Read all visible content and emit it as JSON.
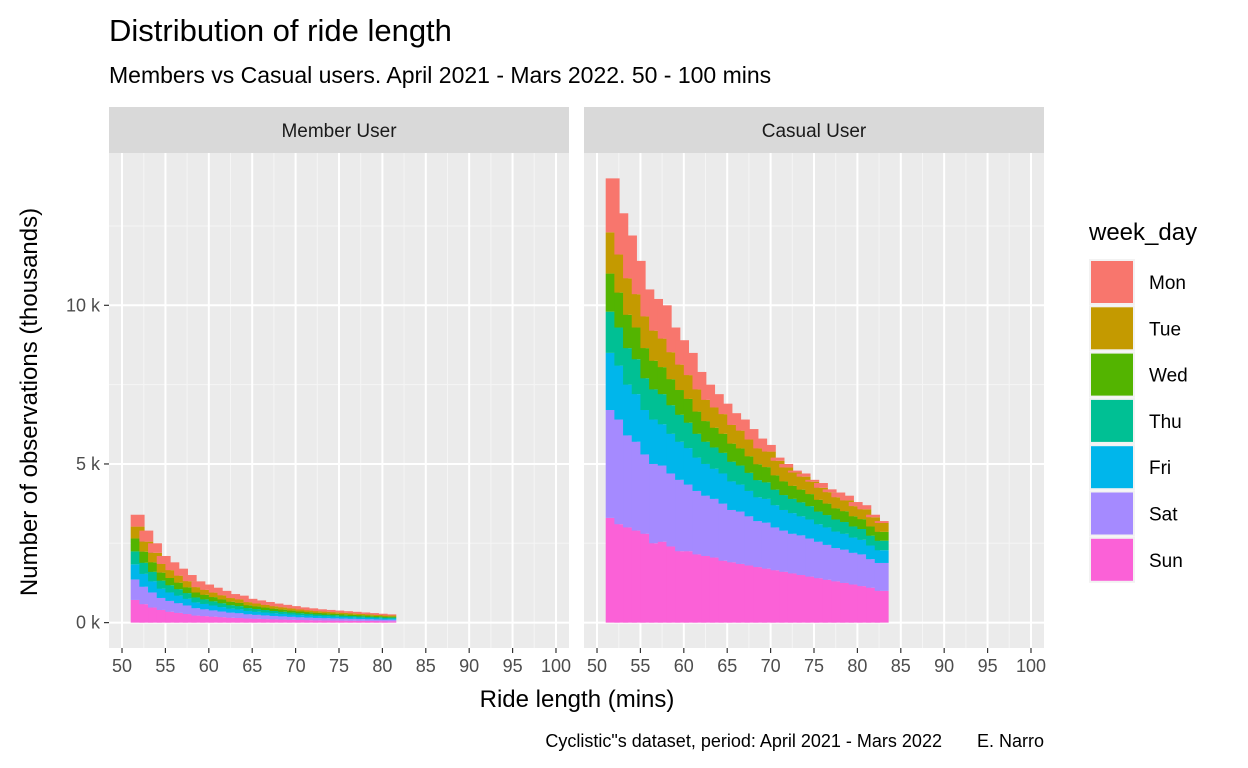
{
  "chart_data": {
    "type": "bar",
    "subtype": "stacked-histogram-facets",
    "title": "Distribution of ride length",
    "subtitle": "Members vs Casual users. April 2021 - Mars 2022. 50 - 100 mins",
    "caption": "Cyclistic\"s dataset, period: April 2021 - Mars 2022       E. Narro",
    "xlabel": "Ride length (mins)",
    "ylabel": "Number of observations (thousands)",
    "xlim": [
      48.5,
      101.5
    ],
    "ylim": [
      -800,
      14800
    ],
    "x_ticks": [
      50,
      55,
      60,
      65,
      70,
      75,
      80,
      85,
      90,
      95,
      100
    ],
    "y_ticks": [
      {
        "value": 0,
        "label": "0 k"
      },
      {
        "value": 5000,
        "label": "5 k"
      },
      {
        "value": 10000,
        "label": "10 k"
      }
    ],
    "grid": true,
    "legend": {
      "title": "week_day",
      "position": "right",
      "entries": [
        {
          "name": "Mon",
          "color": "#F8766D"
        },
        {
          "name": "Tue",
          "color": "#C49A00"
        },
        {
          "name": "Wed",
          "color": "#53B400"
        },
        {
          "name": "Thu",
          "color": "#00C094"
        },
        {
          "name": "Fri",
          "color": "#00B6EB"
        },
        {
          "name": "Sat",
          "color": "#A58AFF"
        },
        {
          "name": "Sun",
          "color": "#FB61D7"
        }
      ]
    },
    "bin_starts": [
      51,
      52,
      53,
      54,
      55,
      56,
      57,
      58,
      59,
      60,
      61,
      62,
      63,
      64,
      65,
      66,
      67,
      68,
      69,
      70,
      71,
      72,
      73,
      74,
      75,
      76,
      77,
      78,
      79,
      80,
      81,
      82,
      83,
      84,
      85,
      86,
      87,
      88,
      89,
      90,
      91,
      92,
      93,
      94,
      95,
      96,
      97,
      98
    ],
    "bin_width": 1.6,
    "stack_order": [
      "Sun",
      "Sat",
      "Fri",
      "Thu",
      "Wed",
      "Tue",
      "Mon"
    ],
    "facets": [
      {
        "label": "Member User",
        "totals": [
          3400,
          2900,
          2500,
          2100,
          1900,
          1700,
          1500,
          1300,
          1200,
          1100,
          1000,
          900,
          850,
          750,
          700,
          650,
          600,
          560,
          520,
          480,
          450,
          420,
          400,
          380,
          360,
          340,
          320,
          300,
          280,
          260
        ],
        "shares": {
          "Sun": [
            0.21,
            0.2,
            0.19,
            0.19,
            0.18,
            0.18,
            0.18,
            0.17,
            0.17,
            0.17,
            0.17,
            0.17,
            0.17,
            0.17,
            0.17,
            0.17,
            0.17,
            0.17,
            0.17,
            0.17,
            0.17,
            0.17,
            0.17,
            0.17,
            0.17,
            0.17,
            0.17,
            0.17,
            0.17,
            0.17
          ],
          "Sat": [
            0.19,
            0.19,
            0.19,
            0.18,
            0.18,
            0.18,
            0.18,
            0.18,
            0.18,
            0.18,
            0.18,
            0.18,
            0.18,
            0.18,
            0.18,
            0.18,
            0.18,
            0.18,
            0.18,
            0.18,
            0.18,
            0.18,
            0.18,
            0.18,
            0.18,
            0.18,
            0.18,
            0.18,
            0.18,
            0.18
          ],
          "Fri": [
            0.14,
            0.14,
            0.14,
            0.14,
            0.14,
            0.14,
            0.14,
            0.14,
            0.14,
            0.14,
            0.14,
            0.14,
            0.14,
            0.14,
            0.14,
            0.14,
            0.14,
            0.14,
            0.14,
            0.14,
            0.14,
            0.14,
            0.14,
            0.14,
            0.14,
            0.14,
            0.14,
            0.14,
            0.14,
            0.14
          ],
          "Thu": [
            0.12,
            0.12,
            0.12,
            0.12,
            0.12,
            0.12,
            0.12,
            0.12,
            0.12,
            0.12,
            0.12,
            0.12,
            0.12,
            0.12,
            0.12,
            0.12,
            0.12,
            0.12,
            0.12,
            0.12,
            0.12,
            0.12,
            0.12,
            0.12,
            0.12,
            0.12,
            0.12,
            0.12,
            0.12,
            0.12
          ],
          "Wed": [
            0.12,
            0.12,
            0.12,
            0.12,
            0.12,
            0.12,
            0.12,
            0.12,
            0.12,
            0.12,
            0.12,
            0.12,
            0.12,
            0.12,
            0.12,
            0.12,
            0.12,
            0.12,
            0.12,
            0.12,
            0.12,
            0.12,
            0.12,
            0.12,
            0.12,
            0.12,
            0.12,
            0.12,
            0.12,
            0.12
          ],
          "Tue": [
            0.11,
            0.11,
            0.12,
            0.13,
            0.13,
            0.13,
            0.13,
            0.13,
            0.13,
            0.13,
            0.13,
            0.13,
            0.13,
            0.13,
            0.13,
            0.13,
            0.13,
            0.13,
            0.13,
            0.13,
            0.13,
            0.13,
            0.13,
            0.13,
            0.13,
            0.13,
            0.13,
            0.13,
            0.13,
            0.13
          ],
          "Mon": [
            0.11,
            0.12,
            0.12,
            0.12,
            0.13,
            0.13,
            0.13,
            0.14,
            0.14,
            0.14,
            0.14,
            0.14,
            0.14,
            0.14,
            0.14,
            0.14,
            0.14,
            0.14,
            0.14,
            0.14,
            0.14,
            0.14,
            0.14,
            0.14,
            0.14,
            0.14,
            0.14,
            0.14,
            0.14,
            0.14
          ]
        }
      },
      {
        "label": "Casual User",
        "totals": [
          14000,
          12900,
          12200,
          11400,
          10500,
          10400,
          10000,
          9300,
          8900,
          8500,
          7900,
          7500,
          7100,
          6900,
          6600,
          6300,
          6100,
          5700,
          5600,
          5100,
          4900,
          4700,
          4600,
          4300,
          4200,
          4000,
          3900,
          3800,
          3600,
          3500,
          3200,
          3100
        ],
        "Sun": [
          3300,
          3100,
          3000,
          2900,
          2800,
          2500,
          2550,
          2400,
          2250,
          2250,
          2150,
          2100,
          2050,
          1950,
          1900,
          1850,
          1800,
          1750,
          1700,
          1650,
          1600,
          1550,
          1500,
          1450,
          1400,
          1350,
          1300,
          1250,
          1200,
          1150,
          1100,
          1000
        ],
        "Sat": [
          3400,
          3300,
          2900,
          2800,
          2500,
          2500,
          2400,
          2300,
          2250,
          2100,
          2000,
          1900,
          1850,
          1800,
          1650,
          1650,
          1550,
          1450,
          1450,
          1350,
          1300,
          1250,
          1250,
          1200,
          1150,
          1100,
          1050,
          1050,
          1000,
          1000,
          900,
          880
        ],
        "Fri": [
          1800,
          1700,
          1600,
          1500,
          1400,
          1400,
          1300,
          1250,
          1200,
          1150,
          1050,
          1000,
          950,
          950,
          900,
          850,
          800,
          750,
          750,
          700,
          650,
          650,
          600,
          600,
          550,
          550,
          520,
          500,
          480,
          460,
          430,
          400
        ],
        "Thu": [
          1300,
          1200,
          1150,
          1100,
          1000,
          950,
          950,
          900,
          850,
          800,
          750,
          700,
          670,
          650,
          620,
          600,
          570,
          540,
          520,
          490,
          470,
          450,
          440,
          420,
          400,
          390,
          380,
          370,
          350,
          340,
          310,
          300
        ],
        "Wed": [
          1200,
          1100,
          1050,
          1000,
          950,
          900,
          850,
          820,
          780,
          750,
          700,
          650,
          620,
          600,
          570,
          540,
          520,
          500,
          480,
          450,
          430,
          410,
          400,
          380,
          370,
          360,
          350,
          340,
          320,
          310,
          290,
          280
        ],
        "Tue": [
          1300,
          1200,
          1150,
          1050,
          1000,
          950,
          900,
          850,
          800,
          750,
          700,
          670,
          640,
          620,
          590,
          560,
          530,
          500,
          490,
          460,
          440,
          420,
          410,
          390,
          380,
          360,
          350,
          340,
          320,
          310,
          290,
          280
        ],
        "Mon": [
          1700,
          1300,
          1350,
          1050,
          850,
          1000,
          1050,
          780,
          770,
          700,
          550,
          480,
          420,
          330,
          370,
          350,
          330,
          310,
          210,
          100,
          110,
          60,
          100,
          60,
          150,
          90,
          150,
          150,
          130,
          130,
          80,
          60
        ]
      }
    ]
  }
}
